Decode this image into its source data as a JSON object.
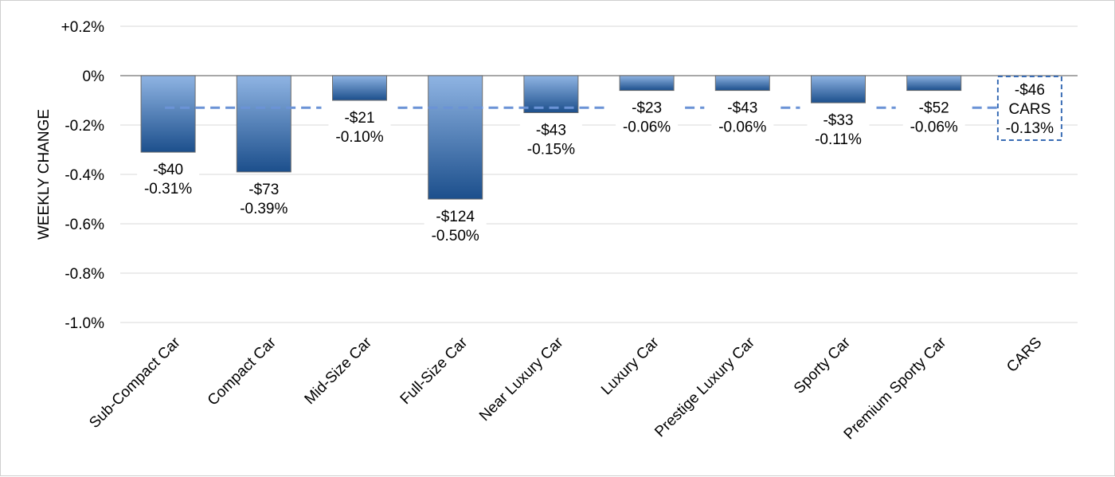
{
  "chart_data": {
    "type": "bar",
    "ylabel": "WEEKLY CHANGE",
    "ylim": [
      -1.0,
      0.2
    ],
    "yticks": [
      0.2,
      0.0,
      -0.2,
      -0.4,
      -0.6,
      -0.8,
      -1.0
    ],
    "ytick_labels": [
      "+0.2%",
      "0%",
      "-0.2%",
      "-0.4%",
      "-0.6%",
      "-0.8%",
      "-1.0%"
    ],
    "grid": true,
    "categories": [
      "Sub-Compact Car",
      "Compact Car",
      "Mid-Size Car",
      "Full-Size Car",
      "Near Luxury Car",
      "Luxury Car",
      "Prestige Luxury Car",
      "Sporty Car",
      "Premium Sporty Car",
      "CARS"
    ],
    "series": [
      {
        "values": [
          -0.31,
          -0.39,
          -0.1,
          -0.5,
          -0.15,
          -0.06,
          -0.06,
          -0.11,
          -0.06,
          -0.13
        ]
      }
    ],
    "dollar_labels": [
      "-$40",
      "-$73",
      "-$21",
      "-$124",
      "-$43",
      "-$23",
      "-$43",
      "-$33",
      "-$52",
      "-$46"
    ],
    "pct_labels": [
      "-0.31%",
      "-0.39%",
      "-0.10%",
      "-0.50%",
      "-0.15%",
      "-0.06%",
      "-0.06%",
      "-0.11%",
      "-0.06%",
      "-0.13%"
    ],
    "reference_line": {
      "value": -0.13,
      "style": "dashed"
    },
    "total_box": {
      "category": "CARS",
      "label": "CARS"
    },
    "colors": {
      "bar_top": "#8fb4e3",
      "bar_bottom": "#1c4f8c",
      "bar_stroke": "#6d6d6d",
      "reference_line": "#6b93d6",
      "total_box": "#3a6db5",
      "grid": "#d9d9d9",
      "axis": "#8c8c8c"
    }
  }
}
